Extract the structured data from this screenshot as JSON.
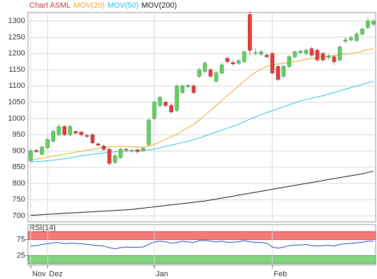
{
  "chart_data": {
    "type": "candlestick",
    "title": "Chart ASML",
    "title_color": "#c83a3a",
    "categories": [
      "Nov",
      null,
      null,
      "Dez",
      null,
      null,
      null,
      null,
      null,
      null,
      null,
      null,
      null,
      null,
      null,
      null,
      null,
      null,
      null,
      null,
      null,
      null,
      "Jan",
      null,
      null,
      null,
      null,
      null,
      null,
      null,
      null,
      null,
      null,
      null,
      null,
      null,
      null,
      null,
      null,
      null,
      null,
      null,
      null,
      "Feb",
      null,
      null,
      null,
      null,
      null,
      null,
      null,
      null,
      null,
      null,
      null,
      null,
      null,
      null,
      null,
      null,
      null,
      null
    ],
    "open": [
      870,
      902,
      890,
      910,
      930,
      950,
      975,
      950,
      960,
      958,
      948,
      950,
      922,
      915,
      905,
      865,
      880,
      905,
      900,
      903,
      900,
      920,
      1000,
      1040,
      1050,
      1040,
      1025,
      1080,
      1098,
      1100,
      1130,
      1145,
      1150,
      1115,
      1140,
      1185,
      1172,
      1170,
      1175,
      1320,
      1200,
      1198,
      1195,
      1200,
      1160,
      1130,
      1160,
      1190,
      1203,
      1200,
      1215,
      1210,
      1200,
      1188,
      1190,
      1180,
      1238,
      1242,
      1240,
      1260,
      1280,
      1290
    ],
    "high": [
      906,
      906,
      916,
      940,
      965,
      982,
      980,
      980,
      962,
      962,
      952,
      955,
      926,
      920,
      910,
      890,
      910,
      910,
      906,
      908,
      912,
      1000,
      1055,
      1070,
      1056,
      1046,
      1105,
      1105,
      1106,
      1106,
      1155,
      1175,
      1156,
      1145,
      1170,
      1190,
      1178,
      1182,
      1210,
      1330,
      1215,
      1210,
      1200,
      1205,
      1165,
      1165,
      1195,
      1210,
      1212,
      1215,
      1220,
      1215,
      1205,
      1198,
      1195,
      1225,
      1250,
      1255,
      1265,
      1280,
      1310,
      1305
    ],
    "low": [
      865,
      894,
      886,
      905,
      926,
      946,
      946,
      946,
      952,
      945,
      940,
      920,
      915,
      900,
      855,
      860,
      876,
      898,
      895,
      893,
      897,
      915,
      995,
      1035,
      1035,
      1015,
      1020,
      1075,
      1094,
      1075,
      1125,
      1140,
      1125,
      1110,
      1135,
      1170,
      1162,
      1165,
      1170,
      1195,
      1195,
      1192,
      1185,
      1135,
      1115,
      1125,
      1155,
      1185,
      1198,
      1195,
      1190,
      1175,
      1175,
      1182,
      1165,
      1175,
      1232,
      1238,
      1235,
      1255,
      1275,
      1285
    ],
    "close": [
      900,
      898,
      912,
      935,
      960,
      975,
      950,
      975,
      955,
      950,
      945,
      925,
      918,
      905,
      862,
      885,
      905,
      903,
      902,
      898,
      908,
      995,
      1050,
      1065,
      1040,
      1020,
      1100,
      1100,
      1102,
      1080,
      1150,
      1170,
      1130,
      1140,
      1165,
      1175,
      1168,
      1178,
      1205,
      1210,
      1202,
      1205,
      1190,
      1140,
      1120,
      1160,
      1190,
      1205,
      1207,
      1210,
      1195,
      1180,
      1180,
      1192,
      1175,
      1220,
      1242,
      1248,
      1260,
      1275,
      1300,
      1300
    ],
    "up_color": "#5fcf5f",
    "down_color": "#e23c3c",
    "ylim": [
      682,
      1326
    ],
    "yticks": [
      700,
      750,
      800,
      850,
      900,
      950,
      1000,
      1050,
      1100,
      1150,
      1200,
      1250,
      1300
    ],
    "grid": true,
    "series": [
      {
        "name": "MOV(20)",
        "color": "#eaa820",
        "values": [
          872,
          875,
          878,
          881,
          884,
          887,
          890,
          893,
          896,
          899,
          902,
          905,
          908,
          911,
          913,
          914,
          914,
          914,
          913,
          912,
          912,
          915,
          920,
          928,
          936,
          944,
          952,
          962,
          972,
          982,
          995,
          1010,
          1025,
          1040,
          1055,
          1070,
          1085,
          1100,
          1115,
          1130,
          1142,
          1152,
          1160,
          1165,
          1168,
          1170,
          1172,
          1175,
          1178,
          1182,
          1185,
          1188,
          1190,
          1192,
          1194,
          1196,
          1198,
          1200,
          1203,
          1207,
          1212,
          1215
        ]
      },
      {
        "name": "MOV(50)",
        "color": "#22c4e6",
        "values": [
          866,
          867,
          868,
          870,
          872,
          874,
          876,
          879,
          882,
          885,
          888,
          890,
          892,
          894,
          896,
          897,
          898,
          899,
          900,
          901,
          902,
          903,
          906,
          910,
          914,
          918,
          922,
          926,
          930,
          935,
          940,
          946,
          952,
          958,
          964,
          970,
          976,
          982,
          990,
          998,
          1005,
          1012,
          1018,
          1024,
          1030,
          1036,
          1042,
          1048,
          1054,
          1058,
          1062,
          1066,
          1070,
          1075,
          1080,
          1085,
          1090,
          1095,
          1100,
          1105,
          1110,
          1115
        ]
      },
      {
        "name": "MOV(200)",
        "color": "#111111",
        "values": [
          702,
          703,
          704,
          705,
          706,
          707,
          708,
          709,
          710,
          711,
          712,
          713,
          714,
          715,
          716,
          717,
          718,
          719,
          720,
          722,
          724,
          726,
          728,
          730,
          732,
          734,
          736,
          738,
          740,
          742,
          744,
          746,
          749,
          752,
          755,
          758,
          761,
          764,
          767,
          770,
          773,
          776,
          779,
          782,
          785,
          788,
          791,
          794,
          797,
          800,
          803,
          806,
          809,
          812,
          815,
          818,
          821,
          824,
          827,
          830,
          834,
          838
        ]
      }
    ],
    "rsi": {
      "name": "RSI(14)",
      "color": "#2a3fd0",
      "values": [
        55,
        56,
        60,
        62,
        65,
        66,
        62,
        64,
        63,
        62,
        60,
        58,
        56,
        55,
        50,
        46,
        50,
        52,
        51,
        51,
        52,
        60,
        68,
        70,
        68,
        64,
        66,
        70,
        68,
        66,
        72,
        72,
        70,
        68,
        70,
        66,
        67,
        68,
        72,
        68,
        66,
        66,
        64,
        52,
        48,
        52,
        56,
        58,
        58,
        60,
        56,
        55,
        56,
        57,
        55,
        60,
        62,
        63,
        65,
        67,
        70,
        70
      ],
      "ylim": [
        0,
        100
      ],
      "yticks": [
        25,
        75
      ],
      "high_band_color": "#f47a7a",
      "low_band_color": "#7fd67f"
    }
  }
}
